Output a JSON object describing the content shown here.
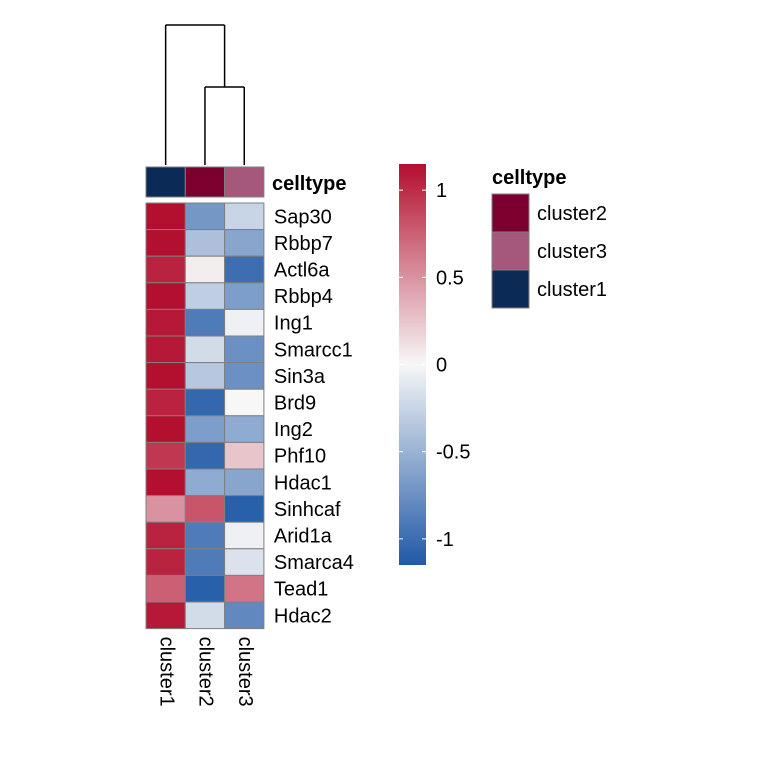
{
  "chart_data": {
    "type": "heatmap",
    "columns": [
      "cluster1",
      "cluster2",
      "cluster3"
    ],
    "rows": [
      "Sap30",
      "Rbbp7",
      "Actl6a",
      "Rbbp4",
      "Ing1",
      "Smarcc1",
      "Sin3a",
      "Brd9",
      "Ing2",
      "Phf10",
      "Hdac1",
      "Sinhcaf",
      "Arid1a",
      "Smarca4",
      "Tead1",
      "Hdac2"
    ],
    "values": [
      [
        1.15,
        -0.7,
        -0.25
      ],
      [
        1.15,
        -0.4,
        -0.6
      ],
      [
        1.05,
        0.05,
        -1.0
      ],
      [
        1.15,
        -0.3,
        -0.65
      ],
      [
        1.1,
        -0.9,
        -0.05
      ],
      [
        1.1,
        -0.2,
        -0.75
      ],
      [
        1.15,
        -0.35,
        -0.75
      ],
      [
        1.05,
        -1.05,
        0.0
      ],
      [
        1.15,
        -0.65,
        -0.55
      ],
      [
        0.95,
        -1.05,
        0.25
      ],
      [
        1.15,
        -0.55,
        -0.6
      ],
      [
        0.5,
        0.8,
        -1.1
      ],
      [
        1.05,
        -0.9,
        -0.05
      ],
      [
        1.05,
        -0.9,
        -0.15
      ],
      [
        0.75,
        -1.1,
        0.65
      ],
      [
        1.1,
        -0.2,
        -0.8
      ]
    ],
    "annotation": {
      "title": "celltype",
      "column_values": [
        "cluster1",
        "cluster2",
        "cluster3"
      ],
      "legend_labels": [
        "cluster2",
        "cluster3",
        "cluster1"
      ],
      "colors": {
        "cluster1": "#0b2a55",
        "cluster2": "#7b0030",
        "cluster3": "#a6587a"
      }
    },
    "colorbar": {
      "min": -1.15,
      "max": 1.15,
      "ticks": [
        1,
        0.5,
        0,
        -0.5,
        -1
      ],
      "tick_labels": [
        "1",
        "0.5",
        "0",
        "-0.5",
        "-1"
      ],
      "colors": [
        "#2059a7",
        "#f7f7f7",
        "#b30f2e"
      ]
    },
    "column_dendrogram": {
      "merge_order": [
        [
          "cluster2",
          "cluster3"
        ],
        [
          "cluster1",
          "cluster2+cluster3"
        ]
      ]
    },
    "legend_placement": "right"
  }
}
